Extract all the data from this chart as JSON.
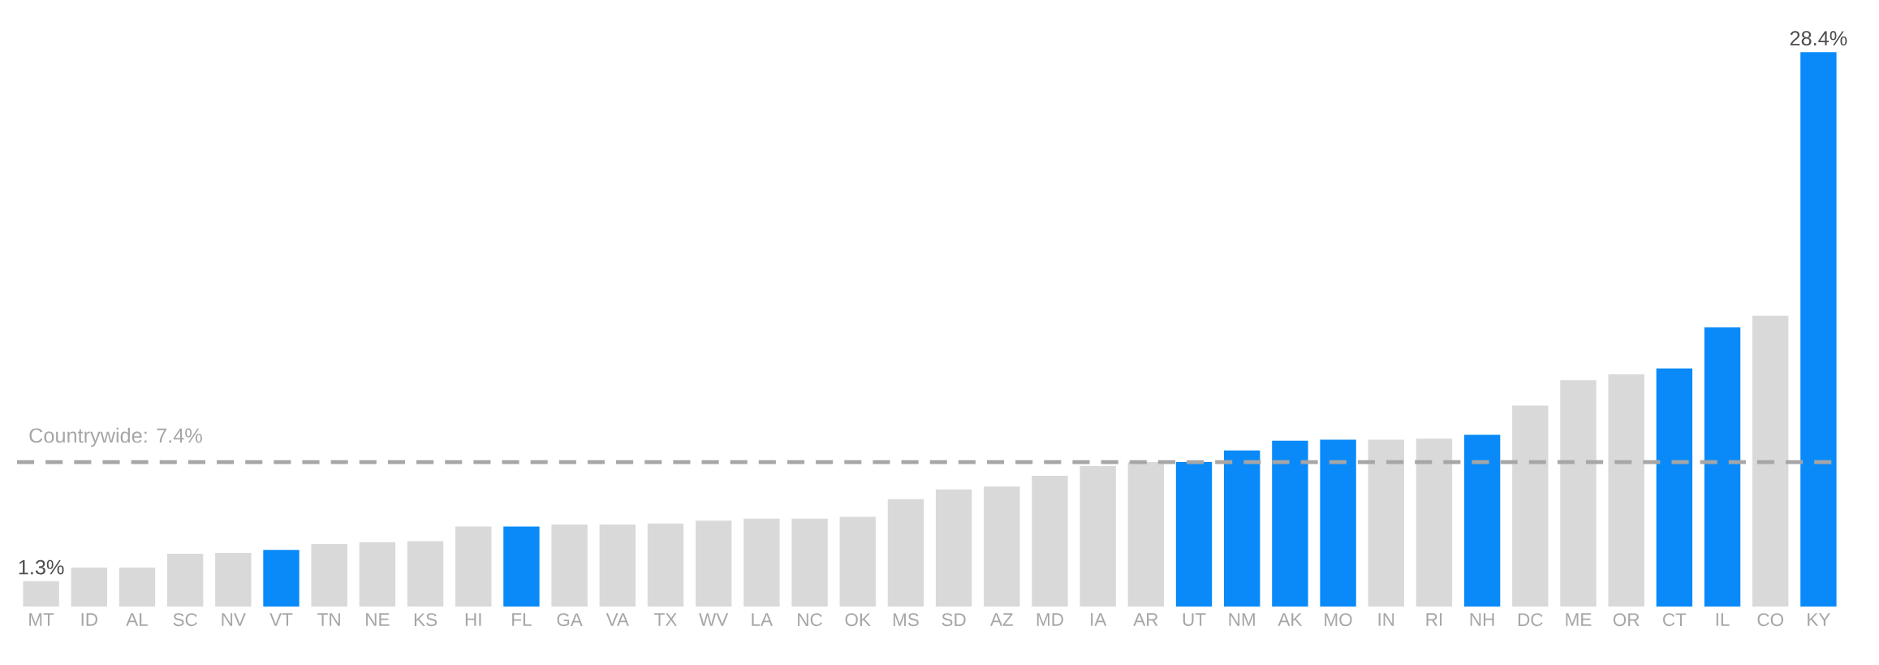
{
  "chart_data": {
    "type": "bar",
    "categories": [
      "MT",
      "ID",
      "AL",
      "SC",
      "NV",
      "VT",
      "TN",
      "NE",
      "KS",
      "HI",
      "FL",
      "GA",
      "VA",
      "TX",
      "WV",
      "LA",
      "NC",
      "OK",
      "MS",
      "SD",
      "AZ",
      "MD",
      "IA",
      "AR",
      "UT",
      "NM",
      "AK",
      "MO",
      "IN",
      "RI",
      "NH",
      "DC",
      "ME",
      "OR",
      "CT",
      "IL",
      "CO",
      "KY"
    ],
    "values": [
      1.3,
      2.0,
      2.0,
      2.7,
      2.75,
      2.9,
      3.2,
      3.3,
      3.35,
      4.1,
      4.1,
      4.2,
      4.2,
      4.25,
      4.4,
      4.5,
      4.5,
      4.6,
      5.5,
      6.0,
      6.15,
      6.7,
      7.2,
      7.4,
      7.4,
      8.0,
      8.5,
      8.55,
      8.55,
      8.6,
      8.8,
      10.3,
      11.6,
      11.9,
      12.2,
      14.3,
      14.9,
      28.4
    ],
    "colors": [
      "#d9d9d9",
      "#d9d9d9",
      "#d9d9d9",
      "#d9d9d9",
      "#d9d9d9",
      "#0a8af8",
      "#d9d9d9",
      "#d9d9d9",
      "#d9d9d9",
      "#d9d9d9",
      "#0a8af8",
      "#d9d9d9",
      "#d9d9d9",
      "#d9d9d9",
      "#d9d9d9",
      "#d9d9d9",
      "#d9d9d9",
      "#d9d9d9",
      "#d9d9d9",
      "#d9d9d9",
      "#d9d9d9",
      "#d9d9d9",
      "#d9d9d9",
      "#d9d9d9",
      "#0a8af8",
      "#0a8af8",
      "#0a8af8",
      "#0a8af8",
      "#d9d9d9",
      "#d9d9d9",
      "#0a8af8",
      "#d9d9d9",
      "#d9d9d9",
      "#d9d9d9",
      "#0a8af8",
      "#0a8af8",
      "#d9d9d9",
      "#0a8af8"
    ],
    "value_labels": [
      "1.3%",
      null,
      null,
      null,
      null,
      null,
      null,
      null,
      null,
      null,
      null,
      null,
      null,
      null,
      null,
      null,
      null,
      null,
      null,
      null,
      null,
      null,
      null,
      null,
      null,
      null,
      null,
      null,
      null,
      null,
      null,
      null,
      null,
      null,
      null,
      null,
      null,
      "28.4%"
    ],
    "tick_labels": "x",
    "ref_lines": [
      {
        "axis": "y",
        "value": 7.4,
        "label": "Countrywide: 7.4%",
        "color": "#a6a6a6",
        "line_style": "dashed"
      }
    ]
  }
}
